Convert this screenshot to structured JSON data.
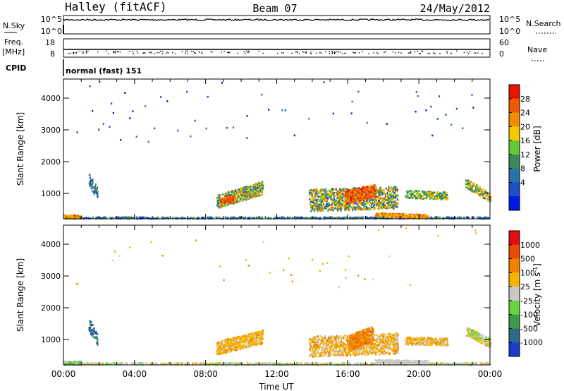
{
  "header": {
    "station": "Halley (fitACF)",
    "beam": "Beam 07",
    "date": "24/May/2012"
  },
  "strips": {
    "nsky_label": "N.Sky",
    "nsky_ticks": [
      "10^5",
      "10^0"
    ],
    "nsearch_label": "N.Search",
    "nsearch_ticks": [
      "10^5",
      "10^0"
    ],
    "freq_label": "Freq.",
    "freq_unit": "[MHz]",
    "freq_ticks": [
      "18",
      "8"
    ],
    "nave_label": "Nave",
    "nave_ticks": [
      "60",
      "0"
    ],
    "cpid_label": "CPID",
    "cpid_value": "normal (fast) 151"
  },
  "chart_data": [
    {
      "type": "heatmap",
      "quantity": "Power",
      "colorbar_label": "Power [dB]",
      "colorbar_ticks": [
        "28",
        "24",
        "20",
        "16",
        "12",
        "8",
        "4"
      ],
      "ylabel": "Slant Range [km]",
      "ylim": [
        200,
        4600
      ],
      "yticks": [
        "4000",
        "3000",
        "2000",
        "1000"
      ],
      "xlim": [
        "00:00",
        "24:00"
      ],
      "scale_colors": [
        "#0019e6",
        "#1e4fc8",
        "#2a73a8",
        "#3c8a5a",
        "#64c832",
        "#f5c800",
        "#f08c00",
        "#ee5a00",
        "#e81400"
      ]
    },
    {
      "type": "heatmap",
      "quantity": "Velocity",
      "colorbar_label": "Velocity [m s",
      "colorbar_unit_sup": "-1",
      "colorbar_ticks": [
        "1000",
        "500",
        "100",
        "25",
        "-25",
        "-100",
        "-500",
        "-1000"
      ],
      "ylabel": "Slant Range [km]",
      "ylim": [
        200,
        4600
      ],
      "yticks": [
        "4000",
        "3000",
        "2000",
        "1000"
      ],
      "xlabel": "Time UT",
      "xticks": [
        "00:00",
        "04:00",
        "08:00",
        "12:00",
        "16:00",
        "20:00",
        "00:00"
      ],
      "xlim": [
        "00:00",
        "24:00"
      ],
      "scale_colors": [
        "#1a3cc8",
        "#2e6a88",
        "#3e9a48",
        "#6ad23c",
        "#c8c8c8",
        "#f5b400",
        "#f08200",
        "#ea4c00",
        "#e10e0e"
      ]
    }
  ]
}
